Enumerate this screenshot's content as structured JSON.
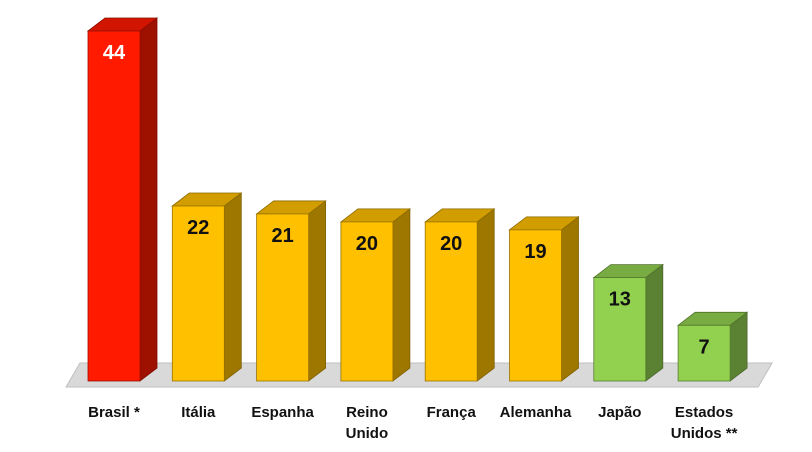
{
  "chart_data": {
    "type": "bar",
    "categories": [
      [
        "Brasil *"
      ],
      [
        "Itália"
      ],
      [
        "Espanha"
      ],
      [
        "Reino",
        "Unido"
      ],
      [
        "França"
      ],
      [
        "Alemanha"
      ],
      [
        "Japão"
      ],
      [
        "Estados",
        "Unidos **"
      ]
    ],
    "values": [
      44,
      22,
      21,
      20,
      20,
      19,
      13,
      7
    ],
    "data_labels": [
      "44",
      "22",
      "21",
      "20",
      "20",
      "19",
      "13",
      "7"
    ],
    "bar_colors": [
      "#ff1a00",
      "#ffc000",
      "#ffc000",
      "#ffc000",
      "#ffc000",
      "#ffc000",
      "#92d050",
      "#92d050"
    ],
    "label_colors": [
      "#ffffff",
      "#111111",
      "#111111",
      "#111111",
      "#111111",
      "#111111",
      "#111111",
      "#111111"
    ],
    "title": "",
    "xlabel": "",
    "ylabel": "",
    "ylim": [
      0,
      44
    ],
    "grid": false,
    "legend": "none",
    "style": "3d-column"
  }
}
